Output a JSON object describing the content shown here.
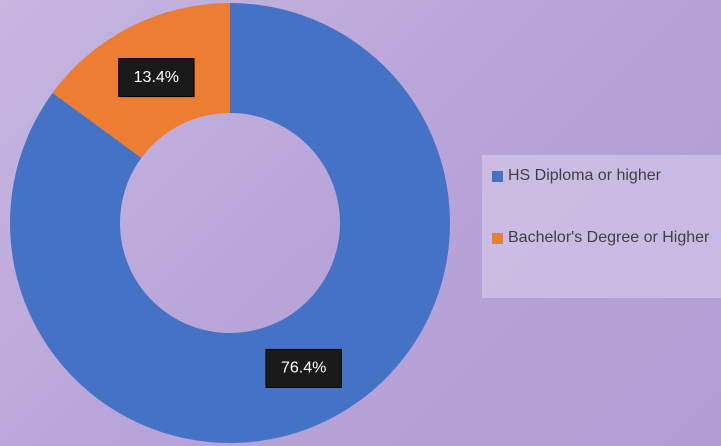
{
  "chart_data": {
    "type": "donut",
    "categories": [
      "HS Diploma or higher",
      "Bachelor's Degree or Higher"
    ],
    "values": [
      76.4,
      13.4
    ],
    "value_labels": [
      "76.4%",
      "13.4%"
    ],
    "colors": [
      "#4472c4",
      "#ed7d31"
    ],
    "legend": "right"
  }
}
